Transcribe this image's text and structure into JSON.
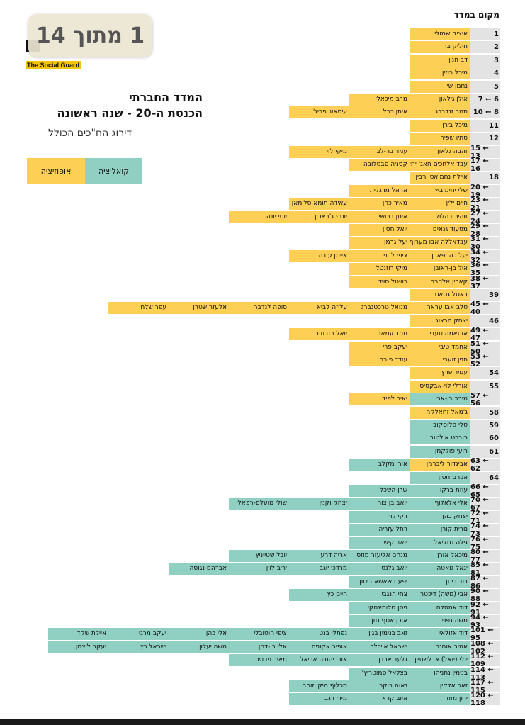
{
  "page_badge": "1 מתוך 14",
  "logo": {
    "text": "The Social Guard"
  },
  "title_line1": "המדד החברתי",
  "title_line2": "הכנסת ה-20 - שנה ראשונה",
  "subtitle": "דירוג הח\"כים הכולל",
  "legend": {
    "coalition": "קואליציה",
    "opposition": "אופוזיציה"
  },
  "colors": {
    "coalition": "#8fd0c3",
    "opposition": "#fdd055",
    "rank_bg": "#e3e3e3"
  },
  "column_header": "מקום במדד",
  "rows": [
    {
      "rank": "1",
      "members": [
        [
          "איציק שמולי",
          "o"
        ]
      ]
    },
    {
      "rank": "2",
      "members": [
        [
          "חיליק בר",
          "o"
        ]
      ]
    },
    {
      "rank": "3",
      "members": [
        [
          "דב חנין",
          "o"
        ]
      ]
    },
    {
      "rank": "4",
      "members": [
        [
          "מיכל רוזין",
          "o"
        ]
      ]
    },
    {
      "rank": "5",
      "members": [
        [
          "נחמן שי",
          "o"
        ]
      ]
    },
    {
      "rank": "7 ← 6",
      "members": [
        [
          "אילן גילאון",
          "o"
        ],
        [
          "מרב מיכאלי",
          "o"
        ]
      ]
    },
    {
      "rank": "10 ← 8",
      "members": [
        [
          "תמר זנדברג",
          "o"
        ],
        [
          "איתן כבל",
          "o"
        ],
        [
          "עיסאווי פריג'",
          "o"
        ]
      ]
    },
    {
      "rank": "11",
      "members": [
        [
          "מיכל בירן",
          "o"
        ]
      ]
    },
    {
      "rank": "12",
      "members": [
        [
          "סתיו שפיר",
          "o"
        ]
      ]
    },
    {
      "rank": "15 ← 13",
      "members": [
        [
          "זהבה גלאון",
          "o"
        ],
        [
          "עמר בר-לב",
          "o"
        ],
        [
          "מיקי לוי",
          "o"
        ]
      ]
    },
    {
      "rank": "17 ← 16",
      "members": [
        [
          "עבד אלחכים חאג' יחיא",
          "o"
        ],
        [
          "קסניה סבטלובה",
          "o"
        ]
      ]
    },
    {
      "rank": "18",
      "members": [
        [
          "איילת נחמיאס ורבין",
          "o"
        ]
      ]
    },
    {
      "rank": "20 ← 19",
      "members": [
        [
          "שלי יחימוביץ",
          "o"
        ],
        [
          "אראל מרגלית",
          "o"
        ]
      ]
    },
    {
      "rank": "23 ← 21",
      "members": [
        [
          "חיים ילין",
          "o"
        ],
        [
          "מאיר כהן",
          "o"
        ],
        [
          "עאידה תומא סלימאן",
          "o"
        ]
      ]
    },
    {
      "rank": "27 ← 24",
      "members": [
        [
          "זוהיר בהלול",
          "o"
        ],
        [
          "איתן ברושי",
          "o"
        ],
        [
          "יוסף ג'בארין",
          "o"
        ],
        [
          "יוסי יונה",
          "o"
        ]
      ]
    },
    {
      "rank": "29 ← 28",
      "members": [
        [
          "מסעוד גנאים",
          "o"
        ],
        [
          "יואל חסון",
          "o"
        ]
      ]
    },
    {
      "rank": "31 ← 30",
      "members": [
        [
          "עבדאללה אבו מערוף",
          "o"
        ],
        [
          "יעל גרמן",
          "o"
        ]
      ]
    },
    {
      "rank": "34 ← 32",
      "members": [
        [
          "יעל כהן פארן",
          "o"
        ],
        [
          "ציפי לבני",
          "o"
        ],
        [
          "איימן עודה",
          "o"
        ]
      ]
    },
    {
      "rank": "36 ← 35",
      "members": [
        [
          "איל בן-ראובן",
          "o"
        ],
        [
          "מיקי רוזנטל",
          "o"
        ]
      ]
    },
    {
      "rank": "38 ← 37",
      "members": [
        [
          "קארין אלהרר",
          "o"
        ],
        [
          "רוויטל סויד",
          "o"
        ]
      ]
    },
    {
      "rank": "39",
      "members": [
        [
          "באסל גטאס",
          "o"
        ]
      ]
    },
    {
      "rank": "45 ← 40",
      "members": [
        [
          "טלב אבו עראר",
          "o"
        ],
        [
          "מנואל טרכטנברג",
          "o"
        ],
        [
          "עליזה לביא",
          "o"
        ],
        [
          "סופה לנדבר",
          "o"
        ],
        [
          "אלעזר שטרן",
          "o"
        ],
        [
          "עפר שלח",
          "o"
        ]
      ]
    },
    {
      "rank": "46",
      "members": [
        [
          "יצחק הרצוג",
          "o"
        ]
      ]
    },
    {
      "rank": "49 ← 47",
      "members": [
        [
          "אוסאמה סעדי",
          "o"
        ],
        [
          "חמד עמאר",
          "o"
        ],
        [
          "יואל רזבוזוב",
          "o"
        ]
      ]
    },
    {
      "rank": "51 ← 50",
      "members": [
        [
          "אחמד טיבי",
          "o"
        ],
        [
          "יעקב פרי",
          "o"
        ]
      ]
    },
    {
      "rank": "53 ← 52",
      "members": [
        [
          "חנין זועבי",
          "o"
        ],
        [
          "עודד פורר",
          "o"
        ]
      ]
    },
    {
      "rank": "54",
      "members": [
        [
          "עמיר פרץ",
          "o"
        ]
      ]
    },
    {
      "rank": "55",
      "members": [
        [
          "אורלי לוי-אבקסיס",
          "o"
        ]
      ]
    },
    {
      "rank": "57 ← 56",
      "members": [
        [
          "מירב בן-ארי",
          "c"
        ],
        [
          "יאיר לפיד",
          "o"
        ]
      ]
    },
    {
      "rank": "58",
      "members": [
        [
          "ג'מאל זחאלקה",
          "o"
        ]
      ]
    },
    {
      "rank": "59",
      "members": [
        [
          "טלי פלוסקוב",
          "c"
        ]
      ]
    },
    {
      "rank": "60",
      "members": [
        [
          "רוברט אילטוב",
          "c"
        ]
      ]
    },
    {
      "rank": "61",
      "members": [
        [
          "רועי פולקמן",
          "c"
        ]
      ]
    },
    {
      "rank": "63 ← 62",
      "members": [
        [
          "אביגדור ליברמן",
          "o"
        ],
        [
          "אורי מקלב",
          "c"
        ]
      ]
    },
    {
      "rank": "64",
      "members": [
        [
          "אכרם חסון",
          "c"
        ]
      ]
    },
    {
      "rank": "66 ← 65",
      "members": [
        [
          "עוזת ברקו",
          "c"
        ],
        [
          "שרן השכל",
          "c"
        ]
      ]
    },
    {
      "rank": "70 ← 67",
      "members": [
        [
          "אלי אלאלוף",
          "c"
        ],
        [
          "יואב בן צור",
          "c"
        ],
        [
          "יצחק וקנין",
          "c"
        ],
        [
          "שולי מועלם-רפאלי",
          "c"
        ]
      ]
    },
    {
      "rank": "72 ← 71",
      "members": [
        [
          "יצחק כהן",
          "c"
        ],
        [
          "דקי לוי",
          "c"
        ]
      ]
    },
    {
      "rank": "74 ← 73",
      "members": [
        [
          "נורית קורן",
          "c"
        ],
        [
          "רחל עזריה",
          "c"
        ]
      ]
    },
    {
      "rank": "76 ← 75",
      "members": [
        [
          "גילה גמליאל",
          "c"
        ],
        [
          "יואב קיש",
          "c"
        ]
      ]
    },
    {
      "rank": "80 ← 77",
      "members": [
        [
          "מיכאל אורן",
          "c"
        ],
        [
          "מנחם אליעזר מוזס",
          "c"
        ],
        [
          "אריה דרעי",
          "c"
        ],
        [
          "יובל שטייניץ",
          "c"
        ]
      ]
    },
    {
      "rank": "85 ← 81",
      "members": [
        [
          "יגאל גואטה",
          "c"
        ],
        [
          "יואב גלנט",
          "c"
        ],
        [
          "מרדכי יוגב",
          "c"
        ],
        [
          "יריב לוין",
          "c"
        ],
        [
          "אברהם נגוסה",
          "c"
        ]
      ]
    },
    {
      "rank": "87 ← 86",
      "members": [
        [
          "דוד ביטן",
          "c"
        ],
        [
          "יפעת שאשא ביטון",
          "c"
        ]
      ]
    },
    {
      "rank": "90 ← 88",
      "members": [
        [
          "אבי (משה) דיכטר",
          "c"
        ],
        [
          "צחי הנגבי",
          "c"
        ],
        [
          "חיים כץ",
          "c"
        ]
      ]
    },
    {
      "rank": "92 ← 91",
      "members": [
        [
          "דוד אמסלם",
          "c"
        ],
        [
          "ניסן סלומינסקי",
          "c"
        ]
      ]
    },
    {
      "rank": "94 ← 93",
      "members": [
        [
          "משה גפני",
          "c"
        ],
        [
          "אורן אסף חזן",
          "c"
        ]
      ]
    },
    {
      "rank": "101 ← 95",
      "members": [
        [
          "דוד אזולאי",
          "c"
        ],
        [
          "זאב בנימין בגין",
          "c"
        ],
        [
          "נפתלי בנט",
          "c"
        ],
        [
          "ציפי חוטובלי",
          "c"
        ],
        [
          "אלי כהן",
          "c"
        ],
        [
          "יעקב מרגי",
          "c"
        ],
        [
          "איילת שקד",
          "c"
        ]
      ]
    },
    {
      "rank": "108 ← 102",
      "members": [
        [
          "אמיר אוחנה",
          "c"
        ],
        [
          "ישראל אייכלר",
          "c"
        ],
        [
          "אופיר אקוניס",
          "c"
        ],
        [
          "אלי בן-דהן",
          "c"
        ],
        [
          "משה יעלון",
          "c"
        ],
        [
          "ישראל כץ",
          "c"
        ],
        [
          "יעקב ליצמן",
          "c"
        ]
      ]
    },
    {
      "rank": "112 ← 109",
      "members": [
        [
          "יולי (יואל) אדלשטיין",
          "c"
        ],
        [
          "גלעד ארדן",
          "c"
        ],
        [
          "אורי יהודה אריאל",
          "c"
        ],
        [
          "מאיר פרוש",
          "c"
        ]
      ]
    },
    {
      "rank": "114 ← 113",
      "members": [
        [
          "בנימין נתניהו",
          "c"
        ],
        [
          "בצלאל סמוטריץ'",
          "c"
        ]
      ]
    },
    {
      "rank": "117 ← 115",
      "members": [
        [
          "זאב אלקין",
          "c"
        ],
        [
          "נאוה בוקר",
          "c"
        ],
        [
          "מכלוף מיקי זוהר",
          "c"
        ]
      ]
    },
    {
      "rank": "120 ← 118",
      "members": [
        [
          "ירון מזוז",
          "c"
        ],
        [
          "איוב קרא",
          "c"
        ],
        [
          "מירי רגב",
          "c"
        ]
      ]
    }
  ]
}
